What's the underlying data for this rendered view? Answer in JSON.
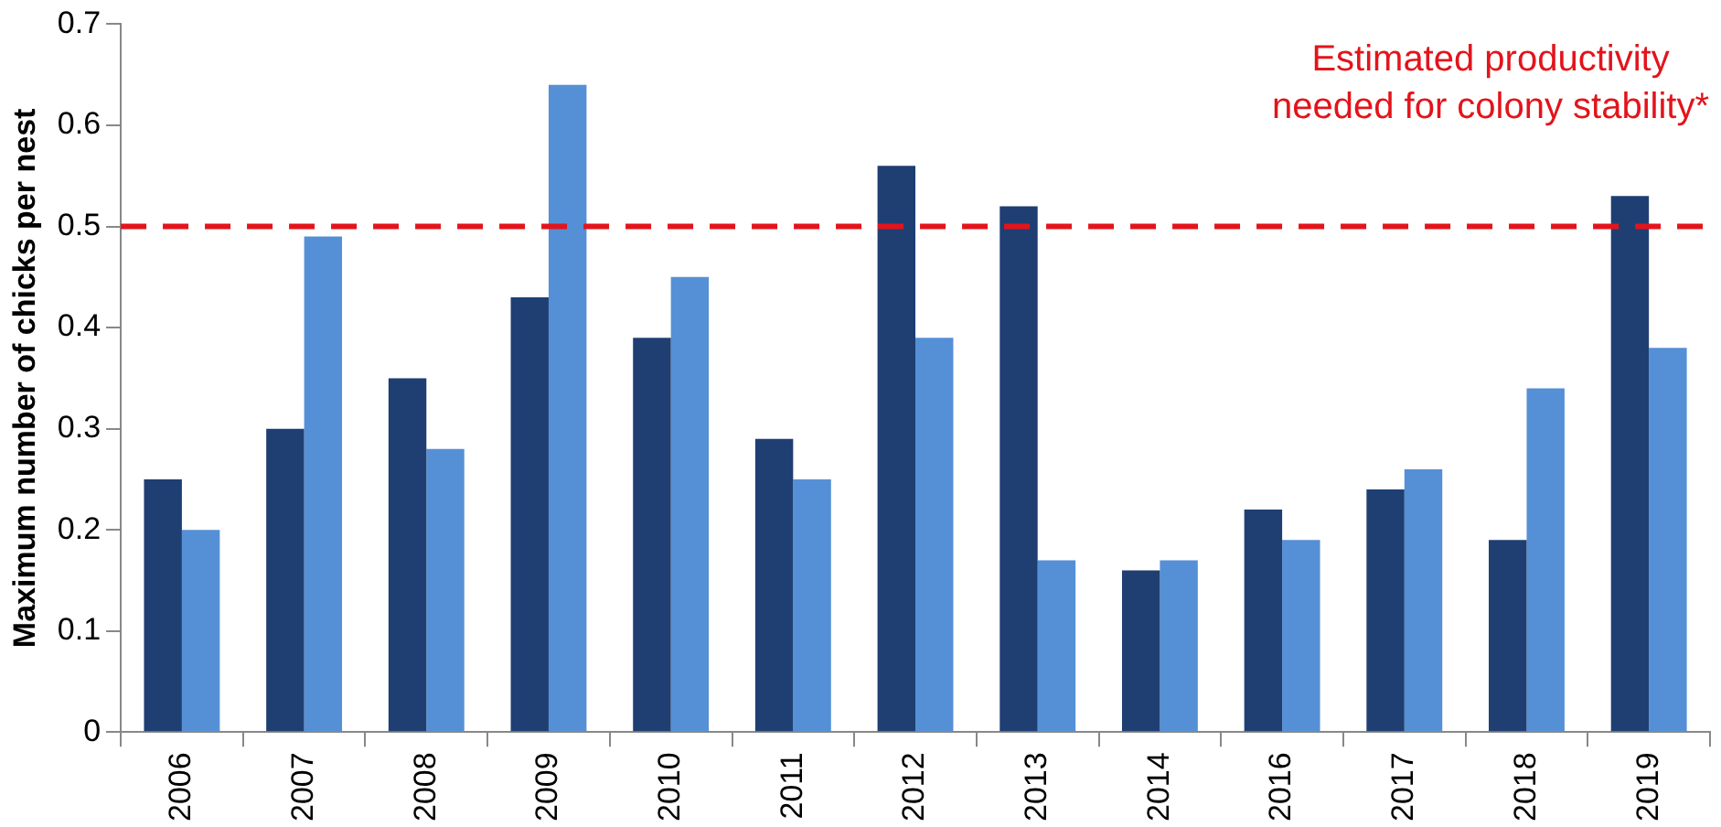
{
  "chart_data": {
    "type": "bar",
    "ylabel": "Maximum number of chicks per nest",
    "categories": [
      "2006",
      "2007",
      "2008",
      "2009",
      "2010",
      "2011",
      "2012",
      "2013",
      "2014",
      "2016",
      "2017",
      "2018",
      "2019"
    ],
    "series": [
      {
        "color": "#1f3f73",
        "values": [
          0.25,
          0.3,
          0.35,
          0.43,
          0.39,
          0.29,
          0.56,
          0.52,
          0.16,
          0.22,
          0.24,
          0.19,
          0.53
        ]
      },
      {
        "color": "#5590d6",
        "values": [
          0.2,
          0.49,
          0.28,
          0.64,
          0.45,
          0.25,
          0.39,
          0.17,
          0.17,
          0.19,
          0.26,
          0.34,
          0.38
        ]
      }
    ],
    "ylim": [
      0,
      0.7
    ],
    "yticks": [
      0,
      0.1,
      0.2,
      0.3,
      0.4,
      0.5,
      0.6,
      0.7
    ],
    "grid": false,
    "legend": false,
    "ref_lines": [
      {
        "axis": "y",
        "value": 0.5,
        "label": "Estimated productivity\nneeded for colony stability*",
        "color": "#e3141b",
        "line_style": "dashed"
      }
    ]
  }
}
